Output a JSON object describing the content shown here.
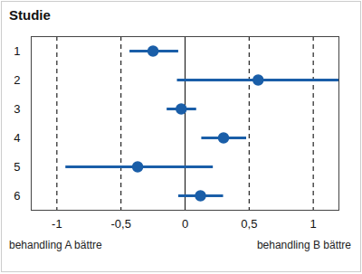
{
  "chart_data": {
    "type": "forest",
    "title": "Studie",
    "categories": [
      "1",
      "2",
      "3",
      "4",
      "5",
      "6"
    ],
    "values": [
      -0.25,
      0.57,
      -0.03,
      0.3,
      -0.37,
      0.12
    ],
    "ci_lower": [
      -0.43,
      -0.06,
      -0.14,
      0.13,
      -0.93,
      -0.05
    ],
    "ci_upper": [
      -0.05,
      1.2,
      0.09,
      0.48,
      0.22,
      0.3
    ],
    "color": "#1a5ea8",
    "xlim": [
      -1.2,
      1.2
    ],
    "xticks": [
      {
        "value": -1,
        "label": "-1"
      },
      {
        "value": -0.5,
        "label": "-0,5"
      },
      0,
      {
        "value": 0.5,
        "label": "0,5"
      },
      1
    ],
    "grid": true,
    "annotations": [
      "behandling A bättre",
      "behandling B bättre"
    ]
  }
}
